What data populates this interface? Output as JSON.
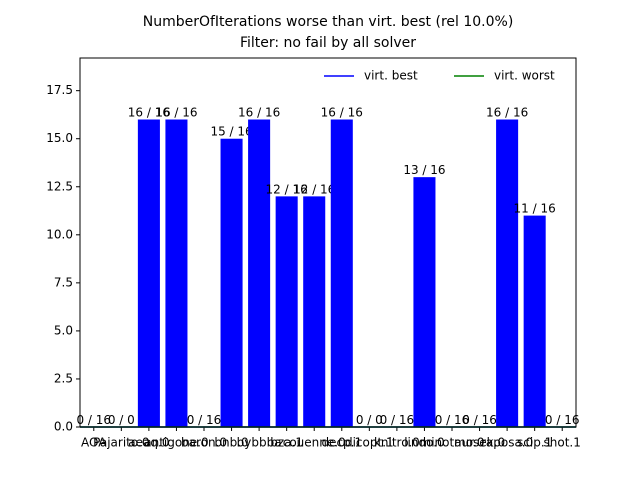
{
  "chart_data": {
    "type": "bar",
    "title": "NumberOfIterations worse than virt. best (rel 10.0%)",
    "subtitle": "Filter: no fail by all solver",
    "categories": [
      "AOA",
      "Pajarito.0",
      "aeaq.0",
      "antigone.0",
      "baron.0",
      "bnb.0",
      "bybbba",
      "bza.1",
      "couenne.0",
      "decp.1",
      "dicopt.1",
      "knitro.0",
      "lindo.0",
      "minotaur.0",
      "mosek.0",
      "raposa.0",
      "scip.1",
      "shot.1"
    ],
    "values": [
      0,
      0,
      16,
      16,
      0,
      15,
      16,
      12,
      12,
      16,
      0,
      0,
      13,
      0,
      0,
      16,
      11,
      0
    ],
    "value_labels": [
      "0 / 16",
      "0 / 0",
      "16 / 16",
      "16 / 16",
      "0 / 16",
      "15 / 16",
      "16 / 16",
      "12 / 16",
      "12 / 16",
      "16 / 16",
      "0 / 0",
      "0 / 16",
      "13 / 16",
      "0 / 16",
      "0 / 16",
      "16 / 16",
      "11 / 16",
      "0 / 16"
    ],
    "color": "#0000ff",
    "ylim": [
      0,
      19.2
    ],
    "yticks": [
      {
        "value": 0,
        "label": "0.0"
      },
      {
        "value": 2.5,
        "label": "2.5"
      },
      {
        "value": 5,
        "label": "5.0"
      },
      {
        "value": 7.5,
        "label": "7.5"
      },
      {
        "value": 10,
        "label": "10.0"
      },
      {
        "value": 12.5,
        "label": "12.5"
      },
      {
        "value": 15,
        "label": "15.0"
      },
      {
        "value": 17.5,
        "label": "17.5"
      }
    ],
    "lines": [
      {
        "name": "virt. best",
        "color": "#0000ff",
        "value": 0
      },
      {
        "name": "virt. worst",
        "color": "#008000",
        "value": 0
      }
    ],
    "legend": "upper right"
  }
}
